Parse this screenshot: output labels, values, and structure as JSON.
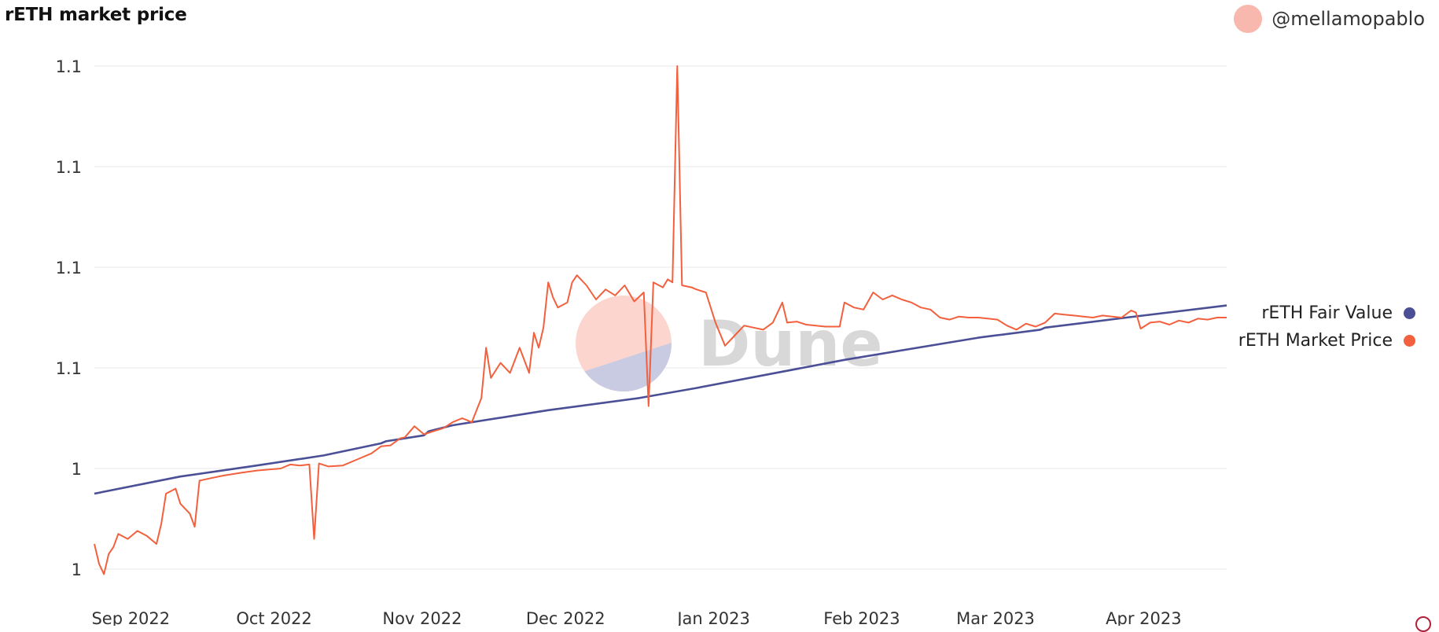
{
  "title": "rETH market price",
  "author": "@mellamopablo",
  "watermark": "Dune",
  "colors": {
    "fair_value": "#4a4f96",
    "market_price": "#f2603d",
    "grid": "#e9e9e9",
    "avatar": "#f8b8ad",
    "watermark_text": "#d8d8d8",
    "watermark_top": "#fcd5cf",
    "watermark_bottom": "#c9cbe3"
  },
  "chart_data": {
    "type": "line",
    "title": "rETH market price",
    "xlabel": "",
    "ylabel": "",
    "x_range": [
      "2022-08-28",
      "2023-04-22"
    ],
    "ylim": [
      1.04,
      1.115
    ],
    "y_ticks": [
      {
        "value": 1.05,
        "label": "1"
      },
      {
        "value": 1.06,
        "label": "1"
      },
      {
        "value": 1.07,
        "label": "1.1"
      },
      {
        "value": 1.08,
        "label": "1.1"
      },
      {
        "value": 1.09,
        "label": "1.1"
      },
      {
        "value": 1.1,
        "label": "1.1"
      }
    ],
    "x_ticks": [
      {
        "x": "2022-09-01",
        "label": "Sep 2022"
      },
      {
        "x": "2022-10-01",
        "label": "Oct 2022"
      },
      {
        "x": "2022-11-01",
        "label": "Nov 2022"
      },
      {
        "x": "2022-12-01",
        "label": "Dec 2022"
      },
      {
        "x": "2023-01-01",
        "label": "Jan 2023"
      },
      {
        "x": "2023-02-01",
        "label": "Feb 2023"
      },
      {
        "x": "2023-03-01",
        "label": "Mar 2023"
      },
      {
        "x": "2023-04-01",
        "label": "Apr 2023"
      }
    ],
    "legend_position": "right",
    "grid": true,
    "series": [
      {
        "name": "rETH Fair Value",
        "color": "#4a4f96",
        "points": [
          [
            "2022-08-28",
            1.0575
          ],
          [
            "2022-09-15",
            1.0592
          ],
          [
            "2022-10-01",
            1.0603
          ],
          [
            "2022-10-15",
            1.0613
          ],
          [
            "2022-10-27",
            1.0625
          ],
          [
            "2022-10-28",
            1.0627
          ],
          [
            "2022-11-05",
            1.0633
          ],
          [
            "2022-11-06",
            1.0637
          ],
          [
            "2022-11-11",
            1.0643
          ],
          [
            "2022-12-01",
            1.0658
          ],
          [
            "2022-12-20",
            1.067
          ],
          [
            "2023-01-01",
            1.068
          ],
          [
            "2023-02-01",
            1.0708
          ],
          [
            "2023-03-01",
            1.073
          ],
          [
            "2023-03-14",
            1.0738
          ],
          [
            "2023-03-15",
            1.074
          ],
          [
            "2023-04-01",
            1.075
          ],
          [
            "2023-04-22",
            1.0762
          ]
        ]
      },
      {
        "name": "rETH Market Price",
        "color": "#f2603d",
        "points": [
          [
            "2022-08-28",
            1.0525
          ],
          [
            "2022-08-29",
            1.0505
          ],
          [
            "2022-08-30",
            1.0495
          ],
          [
            "2022-08-31",
            1.0515
          ],
          [
            "2022-09-01",
            1.0522
          ],
          [
            "2022-09-02",
            1.0535
          ],
          [
            "2022-09-04",
            1.053
          ],
          [
            "2022-09-06",
            1.0538
          ],
          [
            "2022-09-08",
            1.0533
          ],
          [
            "2022-09-10",
            1.0525
          ],
          [
            "2022-09-11",
            1.0545
          ],
          [
            "2022-09-12",
            1.0575
          ],
          [
            "2022-09-14",
            1.058
          ],
          [
            "2022-09-15",
            1.0565
          ],
          [
            "2022-09-17",
            1.0555
          ],
          [
            "2022-09-18",
            1.0542
          ],
          [
            "2022-09-19",
            1.0588
          ],
          [
            "2022-09-21",
            1.059
          ],
          [
            "2022-09-24",
            1.0593
          ],
          [
            "2022-09-28",
            1.0596
          ],
          [
            "2022-10-01",
            1.0598
          ],
          [
            "2022-10-06",
            1.06
          ],
          [
            "2022-10-08",
            1.0604
          ],
          [
            "2022-10-10",
            1.0603
          ],
          [
            "2022-10-12",
            1.0604
          ],
          [
            "2022-10-13",
            1.053
          ],
          [
            "2022-10-14",
            1.0605
          ],
          [
            "2022-10-16",
            1.0602
          ],
          [
            "2022-10-19",
            1.0603
          ],
          [
            "2022-10-22",
            1.0609
          ],
          [
            "2022-10-25",
            1.0615
          ],
          [
            "2022-10-27",
            1.0622
          ],
          [
            "2022-10-29",
            1.0623
          ],
          [
            "2022-10-31",
            1.063
          ],
          [
            "2022-11-01",
            1.0631
          ],
          [
            "2022-11-03",
            1.0642
          ],
          [
            "2022-11-05",
            1.0634
          ],
          [
            "2022-11-07",
            1.0637
          ],
          [
            "2022-11-09",
            1.064
          ],
          [
            "2022-11-11",
            1.0646
          ],
          [
            "2022-11-13",
            1.065
          ],
          [
            "2022-11-15",
            1.0646
          ],
          [
            "2022-11-17",
            1.067
          ],
          [
            "2022-11-18",
            1.072
          ],
          [
            "2022-11-19",
            1.069
          ],
          [
            "2022-11-21",
            1.0705
          ],
          [
            "2022-11-23",
            1.0695
          ],
          [
            "2022-11-25",
            1.072
          ],
          [
            "2022-11-27",
            1.0695
          ],
          [
            "2022-11-28",
            1.0735
          ],
          [
            "2022-11-29",
            1.072
          ],
          [
            "2022-11-30",
            1.074
          ],
          [
            "2022-12-01",
            1.0785
          ],
          [
            "2022-12-02",
            1.077
          ],
          [
            "2022-12-03",
            1.076
          ],
          [
            "2022-12-05",
            1.0765
          ],
          [
            "2022-12-06",
            1.0785
          ],
          [
            "2022-12-07",
            1.0792
          ],
          [
            "2022-12-09",
            1.0782
          ],
          [
            "2022-12-11",
            1.0768
          ],
          [
            "2022-12-13",
            1.0778
          ],
          [
            "2022-12-15",
            1.0772
          ],
          [
            "2022-12-17",
            1.0782
          ],
          [
            "2022-12-19",
            1.0766
          ],
          [
            "2022-12-21",
            1.0775
          ],
          [
            "2022-12-22",
            1.0662
          ],
          [
            "2022-12-23",
            1.0785
          ],
          [
            "2022-12-25",
            1.078
          ],
          [
            "2022-12-26",
            1.0788
          ],
          [
            "2022-12-27",
            1.0785
          ],
          [
            "2022-12-28",
            1.1
          ],
          [
            "2022-12-29",
            1.0782
          ],
          [
            "2022-12-31",
            1.078
          ],
          [
            "2023-01-01",
            1.0778
          ],
          [
            "2023-01-03",
            1.0775
          ],
          [
            "2023-01-05",
            1.0745
          ],
          [
            "2023-01-07",
            1.0722
          ],
          [
            "2023-01-09",
            1.0732
          ],
          [
            "2023-01-11",
            1.0742
          ],
          [
            "2023-01-13",
            1.074
          ],
          [
            "2023-01-15",
            1.0738
          ],
          [
            "2023-01-17",
            1.0745
          ],
          [
            "2023-01-19",
            1.0765
          ],
          [
            "2023-01-20",
            1.0745
          ],
          [
            "2023-01-22",
            1.0746
          ],
          [
            "2023-01-24",
            1.0743
          ],
          [
            "2023-01-26",
            1.0742
          ],
          [
            "2023-01-28",
            1.0741
          ],
          [
            "2023-01-31",
            1.0741
          ],
          [
            "2023-02-01",
            1.0765
          ],
          [
            "2023-02-03",
            1.076
          ],
          [
            "2023-02-05",
            1.0758
          ],
          [
            "2023-02-07",
            1.0775
          ],
          [
            "2023-02-09",
            1.0768
          ],
          [
            "2023-02-11",
            1.0772
          ],
          [
            "2023-02-13",
            1.0768
          ],
          [
            "2023-02-15",
            1.0765
          ],
          [
            "2023-02-17",
            1.076
          ],
          [
            "2023-02-19",
            1.0758
          ],
          [
            "2023-02-21",
            1.075
          ],
          [
            "2023-02-23",
            1.0748
          ],
          [
            "2023-02-25",
            1.0751
          ],
          [
            "2023-02-27",
            1.075
          ],
          [
            "2023-03-01",
            1.075
          ],
          [
            "2023-03-03",
            1.0749
          ],
          [
            "2023-03-05",
            1.0748
          ],
          [
            "2023-03-07",
            1.0742
          ],
          [
            "2023-03-09",
            1.0738
          ],
          [
            "2023-03-11",
            1.0744
          ],
          [
            "2023-03-13",
            1.0741
          ],
          [
            "2023-03-15",
            1.0745
          ],
          [
            "2023-03-17",
            1.0754
          ],
          [
            "2023-03-19",
            1.0753
          ],
          [
            "2023-03-21",
            1.0752
          ],
          [
            "2023-03-23",
            1.0751
          ],
          [
            "2023-03-25",
            1.075
          ],
          [
            "2023-03-27",
            1.0752
          ],
          [
            "2023-03-29",
            1.0751
          ],
          [
            "2023-03-31",
            1.075
          ],
          [
            "2023-04-02",
            1.0757
          ],
          [
            "2023-04-03",
            1.0755
          ],
          [
            "2023-04-04",
            1.0739
          ],
          [
            "2023-04-06",
            1.0745
          ],
          [
            "2023-04-08",
            1.0746
          ],
          [
            "2023-04-10",
            1.0743
          ],
          [
            "2023-04-12",
            1.0747
          ],
          [
            "2023-04-14",
            1.0745
          ],
          [
            "2023-04-16",
            1.0749
          ],
          [
            "2023-04-18",
            1.0748
          ],
          [
            "2023-04-20",
            1.075
          ],
          [
            "2023-04-22",
            1.075
          ]
        ]
      }
    ]
  }
}
